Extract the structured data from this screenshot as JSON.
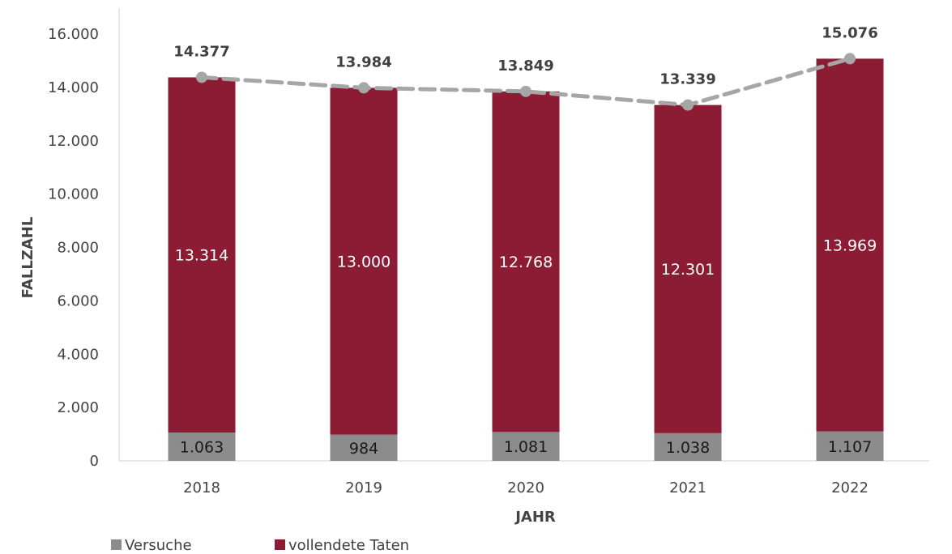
{
  "chart_data": {
    "type": "bar",
    "stacked": true,
    "categories": [
      "2018",
      "2019",
      "2020",
      "2021",
      "2022"
    ],
    "series": [
      {
        "name": "Versuche",
        "values": [
          1063,
          984,
          1081,
          1038,
          1107
        ],
        "labels": [
          "1.063",
          "984",
          "1.081",
          "1.038",
          "1.107"
        ],
        "color": "#8c8c8c",
        "label_color": "#1a1a1a"
      },
      {
        "name": "vollendete Taten",
        "values": [
          13314,
          13000,
          12768,
          12301,
          13969
        ],
        "labels": [
          "13.314",
          "13.000",
          "12.768",
          "12.301",
          "13.969"
        ],
        "color": "#8b1c33",
        "label_color": "#ffffff"
      }
    ],
    "totals": {
      "values": [
        14377,
        13984,
        13849,
        13339,
        15076
      ],
      "labels": [
        "14.377",
        "13.984",
        "13.849",
        "13.339",
        "15.076"
      ],
      "line_style": "dashed",
      "color": "#a6a6a6"
    },
    "xlabel": "JAHR",
    "ylabel": "FALLZAHL",
    "ylim": [
      0,
      16000
    ],
    "yticks": [
      0,
      2000,
      4000,
      6000,
      8000,
      10000,
      12000,
      14000,
      16000
    ],
    "ytick_labels": [
      "0",
      "2.000",
      "4.000",
      "6.000",
      "8.000",
      "10.000",
      "12.000",
      "14.000",
      "16.000"
    ],
    "grid": false,
    "legend_position": "bottom-left"
  }
}
